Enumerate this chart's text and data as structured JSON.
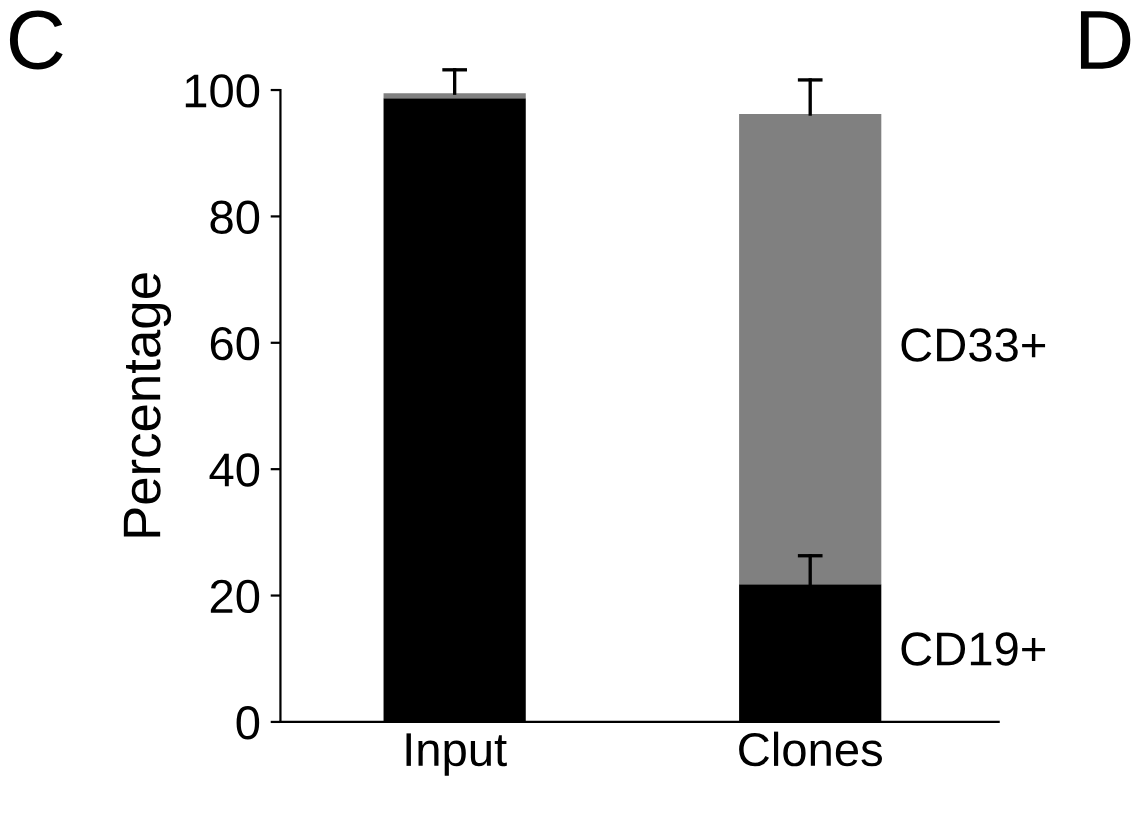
{
  "chart_data": {
    "type": "bar",
    "ylabel": "Percentage",
    "categories": [
      "Input",
      "Clones"
    ],
    "stacked": true,
    "ylim": [
      0,
      100
    ],
    "yticks": [
      0,
      20,
      40,
      60,
      80,
      100
    ],
    "grid": false,
    "legend": false,
    "series": [
      {
        "name": "CD19+",
        "color": "#000000",
        "values": [
          98.7,
          21.8
        ],
        "errors": [
          null,
          [
            21.8,
            26.3
          ]
        ]
      },
      {
        "name": "CD33+",
        "color": "#808080",
        "values": [
          0.8,
          74.4
        ],
        "errors": [
          [
            99.5,
            103.2
          ],
          [
            96.2,
            101.6
          ]
        ]
      }
    ],
    "annotations": [
      "C",
      "D"
    ]
  }
}
